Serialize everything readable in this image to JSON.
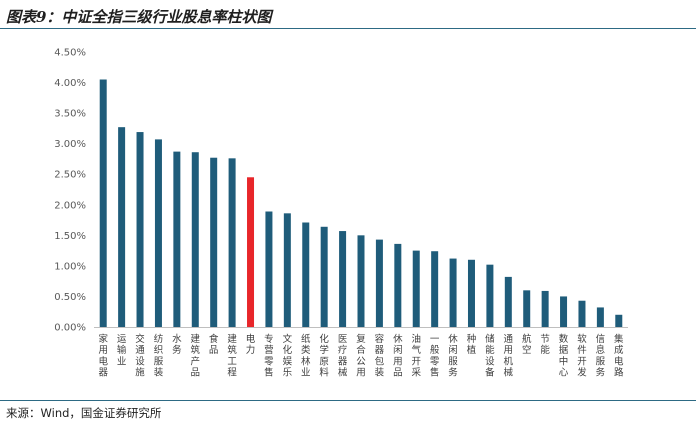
{
  "header": {
    "title": "图表9：中证全指三级行业股息率柱状图"
  },
  "footer": {
    "source": "来源：Wind，国金证券研究所"
  },
  "chart_data": {
    "type": "bar",
    "title": "图表9：中证全指三级行业股息率柱状图",
    "xlabel": "",
    "ylabel": "",
    "ylim": [
      0,
      4.5
    ],
    "yticks": [
      "0.00%",
      "0.50%",
      "1.00%",
      "1.50%",
      "2.00%",
      "2.50%",
      "3.00%",
      "3.50%",
      "4.00%",
      "4.50%"
    ],
    "grid": false,
    "legend": "none",
    "categories": [
      "家用电器",
      "运输业",
      "交通设施",
      "纺织服装",
      "水务",
      "建筑产品",
      "食品",
      "建筑工程",
      "电力",
      "专营零售",
      "文化娱乐",
      "纸类林业",
      "化学原料",
      "医疗器械",
      "复合公用",
      "容器包装",
      "休闲用品",
      "油气开采",
      "一般零售",
      "休闲服务",
      "种植",
      "储能设备",
      "通用机械",
      "航空",
      "节能",
      "数据中心",
      "软件开发",
      "信息服务",
      "集成电路"
    ],
    "values": [
      4.05,
      3.27,
      3.19,
      3.07,
      2.87,
      2.86,
      2.77,
      2.76,
      2.45,
      1.89,
      1.86,
      1.71,
      1.64,
      1.57,
      1.5,
      1.43,
      1.36,
      1.25,
      1.24,
      1.12,
      1.1,
      1.02,
      0.82,
      0.6,
      0.59,
      0.5,
      0.43,
      0.32,
      0.2
    ],
    "highlight_category": "电力",
    "colors": {
      "bar": "#1f5c7a",
      "highlight": "#e8262a",
      "axis": "#bfbfbf"
    }
  }
}
